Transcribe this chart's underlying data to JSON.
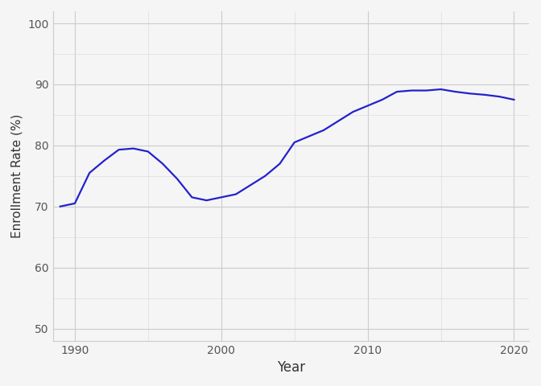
{
  "years": [
    1989,
    1990,
    1991,
    1992,
    1993,
    1994,
    1995,
    1996,
    1997,
    1998,
    1999,
    2000,
    2001,
    2002,
    2003,
    2004,
    2005,
    2006,
    2007,
    2008,
    2009,
    2010,
    2011,
    2012,
    2013,
    2014,
    2015,
    2016,
    2017,
    2018,
    2019,
    2020
  ],
  "values": [
    70.0,
    70.5,
    75.5,
    77.5,
    79.3,
    79.5,
    79.0,
    77.0,
    74.5,
    71.5,
    71.0,
    71.5,
    72.0,
    73.5,
    75.0,
    77.0,
    80.5,
    81.5,
    82.5,
    84.0,
    85.5,
    86.5,
    87.5,
    88.8,
    89.0,
    89.0,
    89.2,
    88.8,
    88.5,
    88.3,
    88.0,
    87.5
  ],
  "line_color": "#2222cc",
  "background_color": "#f5f5f5",
  "grid_color": "#cccccc",
  "grid_color_minor": "#dddddd",
  "xlabel": "Year",
  "ylabel": "Enrollment Rate (%)",
  "xlim": [
    1988.5,
    2021
  ],
  "ylim": [
    48,
    102
  ],
  "xticks": [
    1990,
    2000,
    2010,
    2020
  ],
  "yticks": [
    50,
    60,
    70,
    80,
    90,
    100
  ],
  "tick_label_color": "#555555",
  "axis_label_color": "#333333",
  "line_width": 1.6
}
